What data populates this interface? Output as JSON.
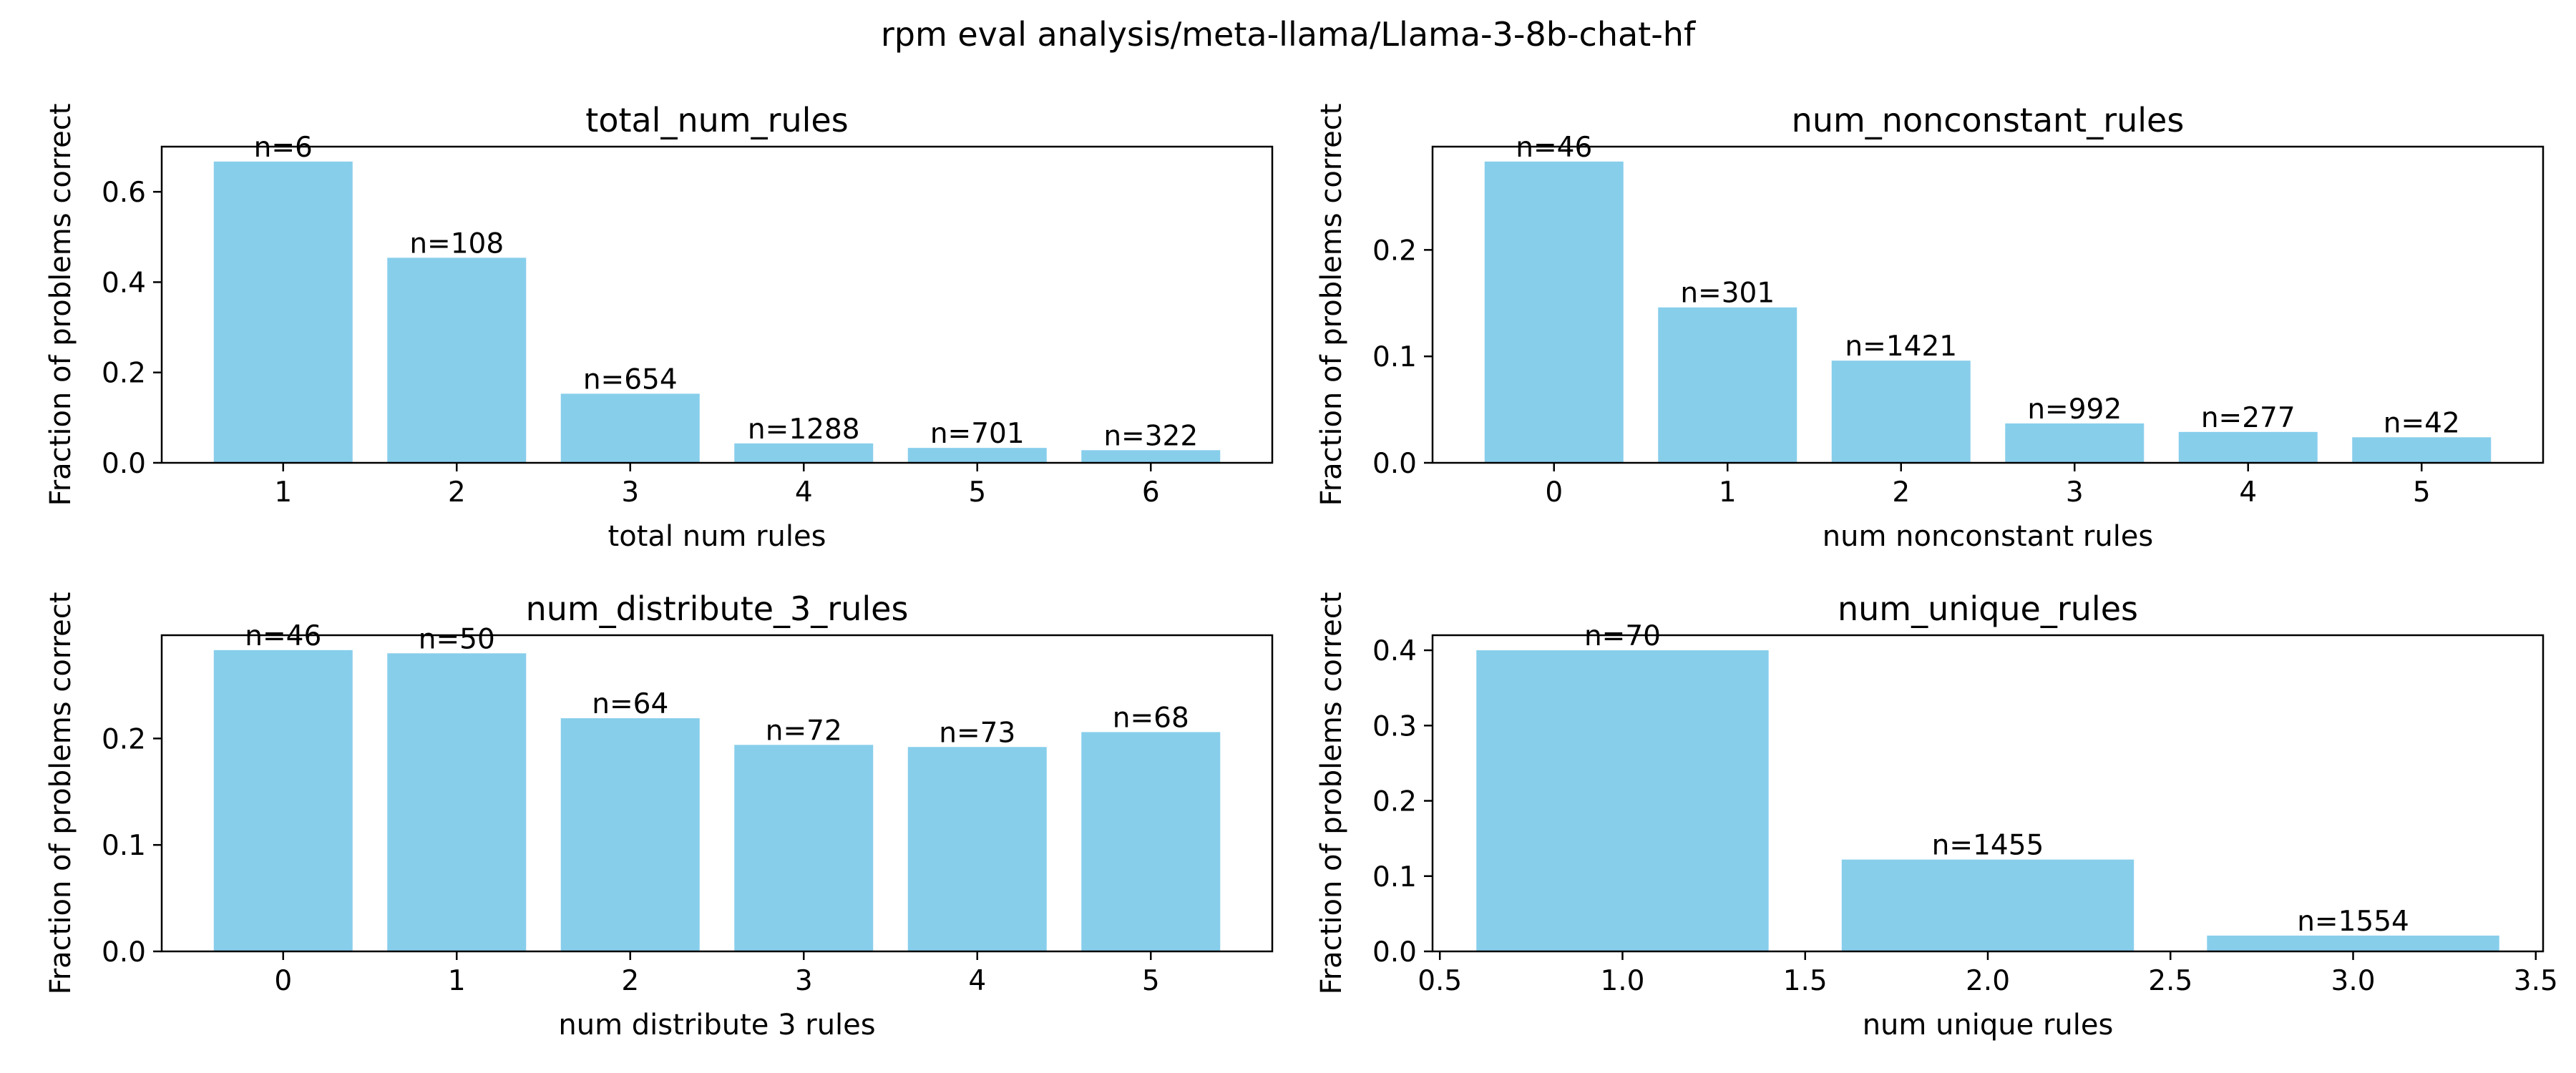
{
  "suptitle": "rpm eval analysis/meta-llama/Llama-3-8b-chat-hf",
  "colors": {
    "bar": "#87ceeb",
    "axes": "#000000",
    "background": "#ffffff"
  },
  "chart_data": [
    {
      "type": "bar",
      "title": "total_num_rules",
      "xlabel": "total num rules",
      "ylabel": "Fraction of problems correct",
      "x": [
        1,
        2,
        3,
        4,
        5,
        6
      ],
      "values": [
        0.667,
        0.454,
        0.153,
        0.043,
        0.033,
        0.028
      ],
      "bar_labels": [
        "n=6",
        "n=108",
        "n=654",
        "n=1288",
        "n=701",
        "n=322"
      ],
      "bar_width": 0.8,
      "xlim": [
        0.3,
        6.7
      ],
      "ylim": [
        0,
        0.7
      ],
      "xticks": [
        1,
        2,
        3,
        4,
        5,
        6
      ],
      "xtick_labels": [
        "1",
        "2",
        "3",
        "4",
        "5",
        "6"
      ],
      "yticks": [
        0.0,
        0.2,
        0.4,
        0.6
      ],
      "ytick_labels": [
        "0.0",
        "0.2",
        "0.4",
        "0.6"
      ],
      "grid": false
    },
    {
      "type": "bar",
      "title": "num_nonconstant_rules",
      "xlabel": "num nonconstant rules",
      "ylabel": "Fraction of problems correct",
      "x": [
        0,
        1,
        2,
        3,
        4,
        5
      ],
      "values": [
        0.283,
        0.146,
        0.096,
        0.037,
        0.029,
        0.024
      ],
      "bar_labels": [
        "n=46",
        "n=301",
        "n=1421",
        "n=992",
        "n=277",
        "n=42"
      ],
      "bar_width": 0.8,
      "xlim": [
        -0.7,
        5.7
      ],
      "ylim": [
        0,
        0.297
      ],
      "xticks": [
        0,
        1,
        2,
        3,
        4,
        5
      ],
      "xtick_labels": [
        "0",
        "1",
        "2",
        "3",
        "4",
        "5"
      ],
      "yticks": [
        0.0,
        0.1,
        0.2
      ],
      "ytick_labels": [
        "0.0",
        "0.1",
        "0.2"
      ],
      "grid": false
    },
    {
      "type": "bar",
      "title": "num_distribute_3_rules",
      "xlabel": "num distribute 3 rules",
      "ylabel": "Fraction of problems correct",
      "x": [
        0,
        1,
        2,
        3,
        4,
        5
      ],
      "values": [
        0.283,
        0.28,
        0.219,
        0.194,
        0.192,
        0.206
      ],
      "bar_labels": [
        "n=46",
        "n=50",
        "n=64",
        "n=72",
        "n=73",
        "n=68"
      ],
      "bar_width": 0.8,
      "xlim": [
        -0.7,
        5.7
      ],
      "ylim": [
        0,
        0.297
      ],
      "xticks": [
        0,
        1,
        2,
        3,
        4,
        5
      ],
      "xtick_labels": [
        "0",
        "1",
        "2",
        "3",
        "4",
        "5"
      ],
      "yticks": [
        0.0,
        0.1,
        0.2
      ],
      "ytick_labels": [
        "0.0",
        "0.1",
        "0.2"
      ],
      "grid": false
    },
    {
      "type": "bar",
      "title": "num_unique_rules",
      "xlabel": "num unique rules",
      "ylabel": "Fraction of problems correct",
      "x": [
        1.0,
        2.0,
        3.0
      ],
      "values": [
        0.4,
        0.122,
        0.021
      ],
      "bar_labels": [
        "n=70",
        "n=1455",
        "n=1554"
      ],
      "bar_width": 0.8,
      "xlim": [
        0.48,
        3.52
      ],
      "ylim": [
        0,
        0.42
      ],
      "xticks": [
        0.5,
        1.0,
        1.5,
        2.0,
        2.5,
        3.0,
        3.5
      ],
      "xtick_labels": [
        "0.5",
        "1.0",
        "1.5",
        "2.0",
        "2.5",
        "3.0",
        "3.5"
      ],
      "yticks": [
        0.0,
        0.1,
        0.2,
        0.3,
        0.4
      ],
      "ytick_labels": [
        "0.0",
        "0.1",
        "0.2",
        "0.3",
        "0.4"
      ],
      "grid": false
    }
  ]
}
